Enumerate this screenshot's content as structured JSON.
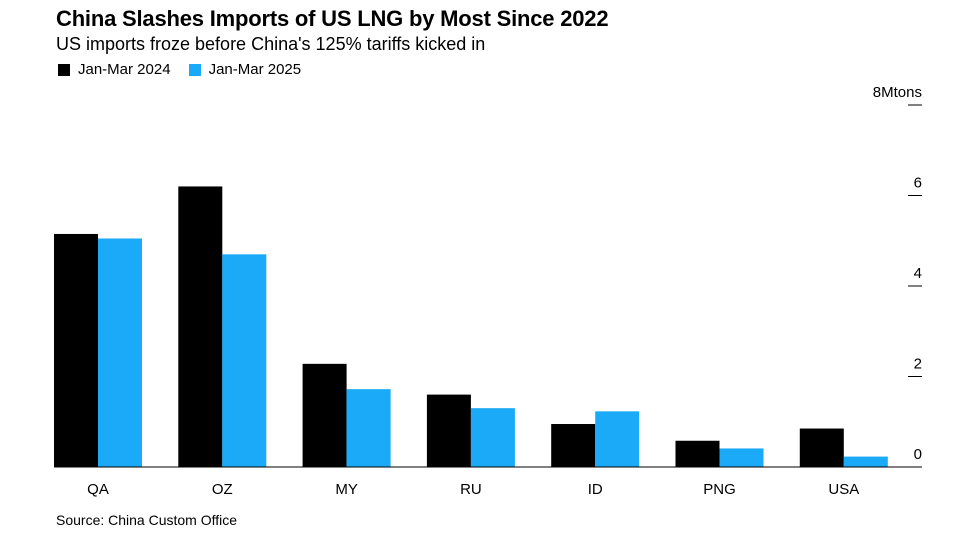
{
  "chart_data": {
    "type": "bar",
    "title": "China Slashes Imports of US LNG by Most Since 2022",
    "subtitle": "US imports froze before China's 125% tariffs kicked in",
    "categories": [
      "QA",
      "OZ",
      "MY",
      "RU",
      "ID",
      "PNG",
      "USA"
    ],
    "series": [
      {
        "name": "Jan-Mar 2024",
        "color": "#000000",
        "values": [
          5.15,
          6.2,
          2.28,
          1.6,
          0.95,
          0.58,
          0.85
        ]
      },
      {
        "name": "Jan-Mar 2025",
        "color": "#1aaaf7",
        "values": [
          5.05,
          4.7,
          1.72,
          1.3,
          1.23,
          0.41,
          0.23
        ]
      }
    ],
    "ylim": [
      0,
      8
    ],
    "yticks": [
      0,
      2,
      4,
      6,
      8
    ],
    "ytick_labels": [
      "0",
      "2",
      "4",
      "6",
      "8Mtons"
    ],
    "xlabel": "",
    "ylabel": "",
    "legend_position": "top-left",
    "grid": false
  },
  "source": "Source: China Custom Office"
}
